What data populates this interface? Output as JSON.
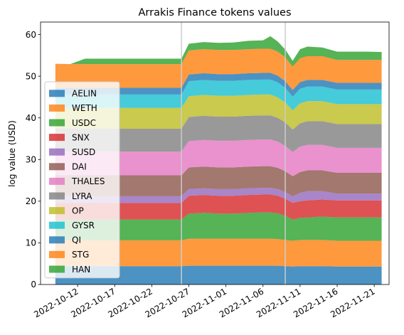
{
  "chart_data": {
    "type": "area",
    "title": "Arrakis Finance tokens values",
    "xlabel": "",
    "ylabel": "log value (USD)",
    "ylim": [
      0,
      63
    ],
    "xlim": [
      "2022-10-07",
      "2022-11-23"
    ],
    "yticks": [
      0,
      10,
      20,
      30,
      40,
      50,
      60
    ],
    "xticks": [
      "2022-10-12",
      "2022-10-17",
      "2022-10-22",
      "2022-10-27",
      "2022-11-01",
      "2022-11-06",
      "2022-11-11",
      "2022-11-16",
      "2022-11-21"
    ],
    "vlines": [
      "2022-10-26",
      "2022-11-09"
    ],
    "grid": false,
    "legend_position": "lower-left",
    "x": [
      "2022-10-09",
      "2022-10-11",
      "2022-10-13",
      "2022-10-15",
      "2022-10-17",
      "2022-10-19",
      "2022-10-21",
      "2022-10-23",
      "2022-10-25",
      "2022-10-26",
      "2022-10-27",
      "2022-10-29",
      "2022-10-31",
      "2022-11-02",
      "2022-11-04",
      "2022-11-06",
      "2022-11-07",
      "2022-11-08",
      "2022-11-09",
      "2022-11-10",
      "2022-11-11",
      "2022-11-12",
      "2022-11-14",
      "2022-11-16",
      "2022-11-18",
      "2022-11-20",
      "2022-11-22"
    ],
    "series": [
      {
        "name": "AELIN",
        "color": "#1f77b4",
        "values": [
          4.4,
          4.4,
          4.4,
          4.4,
          4.4,
          4.4,
          4.4,
          4.4,
          4.4,
          4.4,
          4.5,
          4.5,
          4.5,
          4.5,
          4.5,
          4.5,
          4.5,
          4.5,
          4.4,
          4.3,
          4.4,
          4.4,
          4.4,
          4.3,
          4.3,
          4.3,
          4.3
        ]
      },
      {
        "name": "WETH",
        "color": "#ff7f0e",
        "values": [
          6.2,
          6.2,
          6.2,
          6.2,
          6.2,
          6.2,
          6.2,
          6.2,
          6.2,
          6.2,
          6.5,
          6.5,
          6.5,
          6.5,
          6.5,
          6.5,
          6.5,
          6.4,
          6.3,
          6.2,
          6.3,
          6.3,
          6.3,
          6.2,
          6.2,
          6.2,
          6.2
        ]
      },
      {
        "name": "USDC",
        "color": "#2ca02c",
        "values": [
          5.0,
          5.0,
          5.0,
          5.0,
          5.0,
          5.0,
          5.0,
          5.0,
          5.0,
          5.0,
          6.0,
          6.2,
          6.0,
          6.0,
          6.2,
          6.3,
          6.3,
          6.2,
          5.8,
          5.1,
          5.3,
          5.4,
          5.6,
          5.6,
          5.6,
          5.6,
          5.6
        ]
      },
      {
        "name": "SNX",
        "color": "#d62728",
        "values": [
          4.0,
          4.0,
          4.0,
          4.0,
          4.0,
          4.0,
          4.0,
          4.0,
          4.0,
          4.0,
          4.3,
          4.3,
          4.3,
          4.3,
          4.3,
          4.3,
          4.3,
          4.2,
          4.1,
          4.0,
          4.0,
          4.1,
          4.1,
          4.1,
          4.1,
          4.1,
          4.1
        ]
      },
      {
        "name": "SUSD",
        "color": "#9467bd",
        "values": [
          1.6,
          1.6,
          1.6,
          1.6,
          1.6,
          1.6,
          1.6,
          1.6,
          1.6,
          1.6,
          1.6,
          1.6,
          1.6,
          1.6,
          1.6,
          1.6,
          1.6,
          1.6,
          1.6,
          1.6,
          2.0,
          2.2,
          2.0,
          1.6,
          1.6,
          1.6,
          1.6
        ]
      },
      {
        "name": "DAI",
        "color": "#8c564b",
        "values": [
          5.0,
          5.0,
          5.0,
          5.0,
          5.0,
          5.0,
          5.0,
          5.0,
          5.0,
          5.0,
          5.2,
          5.2,
          5.2,
          5.2,
          5.2,
          5.2,
          5.2,
          5.1,
          5.0,
          4.8,
          5.0,
          5.0,
          5.0,
          5.0,
          5.0,
          5.0,
          5.0
        ]
      },
      {
        "name": "THALES",
        "color": "#e377c2",
        "values": [
          5.7,
          5.7,
          5.7,
          5.7,
          5.7,
          5.7,
          5.7,
          5.7,
          5.7,
          5.7,
          6.3,
          6.4,
          6.4,
          6.4,
          6.4,
          6.4,
          6.4,
          6.3,
          6.1,
          5.8,
          6.1,
          6.1,
          6.1,
          6.0,
          6.0,
          6.0,
          6.0
        ]
      },
      {
        "name": "LYRA",
        "color": "#7f7f7f",
        "values": [
          5.5,
          5.5,
          5.5,
          5.5,
          5.5,
          5.5,
          5.5,
          5.5,
          5.5,
          5.5,
          5.8,
          5.8,
          5.8,
          5.8,
          5.8,
          5.8,
          5.8,
          5.7,
          5.6,
          5.4,
          5.6,
          5.7,
          5.7,
          5.7,
          5.7,
          5.7,
          5.7
        ]
      },
      {
        "name": "OP",
        "color": "#bcbd22",
        "values": [
          5.0,
          5.0,
          5.0,
          5.0,
          5.0,
          5.0,
          5.0,
          5.0,
          5.0,
          5.0,
          5.0,
          5.0,
          5.0,
          5.0,
          5.0,
          5.0,
          5.0,
          4.9,
          4.8,
          4.6,
          4.8,
          4.8,
          4.8,
          4.8,
          4.8,
          4.8,
          4.8
        ]
      },
      {
        "name": "GYSR",
        "color": "#17becf",
        "values": [
          3.2,
          3.2,
          3.2,
          3.2,
          3.2,
          3.2,
          3.2,
          3.2,
          3.2,
          3.2,
          3.6,
          3.6,
          3.6,
          3.6,
          3.6,
          3.6,
          3.6,
          3.6,
          3.5,
          3.3,
          3.5,
          3.5,
          3.5,
          3.5,
          3.5,
          3.5,
          3.5
        ]
      },
      {
        "name": "QI",
        "color": "#1f77b4",
        "values": [
          1.6,
          1.6,
          1.6,
          1.6,
          1.6,
          1.6,
          1.6,
          1.6,
          1.6,
          1.6,
          1.6,
          1.6,
          1.6,
          1.6,
          1.6,
          1.6,
          1.6,
          1.6,
          1.6,
          1.6,
          1.6,
          1.6,
          1.6,
          1.6,
          1.6,
          1.6,
          1.6
        ]
      },
      {
        "name": "STG",
        "color": "#ff7f0e",
        "values": [
          5.8,
          5.7,
          5.7,
          5.7,
          5.7,
          5.7,
          5.7,
          5.7,
          5.7,
          5.7,
          5.8,
          5.8,
          5.8,
          5.8,
          5.8,
          5.8,
          5.8,
          5.8,
          5.7,
          5.6,
          5.7,
          5.7,
          5.7,
          5.5,
          5.5,
          5.5,
          5.5
        ]
      },
      {
        "name": "HAN",
        "color": "#2ca02c",
        "values": [
          0.0,
          0.0,
          1.3,
          1.3,
          1.3,
          1.3,
          1.3,
          1.3,
          1.3,
          1.3,
          1.6,
          1.7,
          1.7,
          1.8,
          2.0,
          2.0,
          3.0,
          2.4,
          1.9,
          1.4,
          2.2,
          2.3,
          2.1,
          2.0,
          2.0,
          2.0,
          1.9
        ]
      }
    ]
  }
}
